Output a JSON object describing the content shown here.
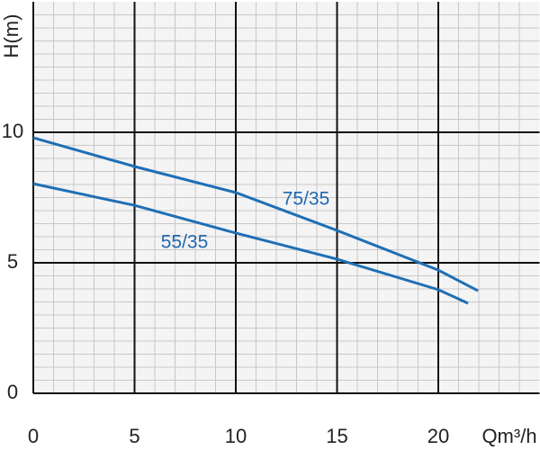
{
  "chart_data": {
    "type": "line",
    "x_label": "Qm³/h",
    "y_label": "H(m)",
    "xlim": [
      0,
      25
    ],
    "ylim": [
      0,
      15
    ],
    "xticks": [
      0,
      5,
      10,
      15,
      20
    ],
    "yticks": [
      0,
      5,
      10
    ],
    "x_minor_step": 1,
    "y_minor_step": 0.5,
    "grid": true,
    "series": [
      {
        "name": "75/35",
        "color": "#1f6fb5",
        "x": [
          0,
          5,
          10,
          15,
          20,
          21.96
        ],
        "values": [
          9.79,
          8.69,
          7.69,
          6.24,
          4.72,
          3.93
        ]
      },
      {
        "name": "55/35",
        "color": "#1f6fb5",
        "x": [
          0,
          5,
          10,
          15,
          20,
          21.47
        ],
        "values": [
          8.03,
          7.2,
          6.14,
          5.14,
          3.97,
          3.45
        ]
      }
    ]
  }
}
